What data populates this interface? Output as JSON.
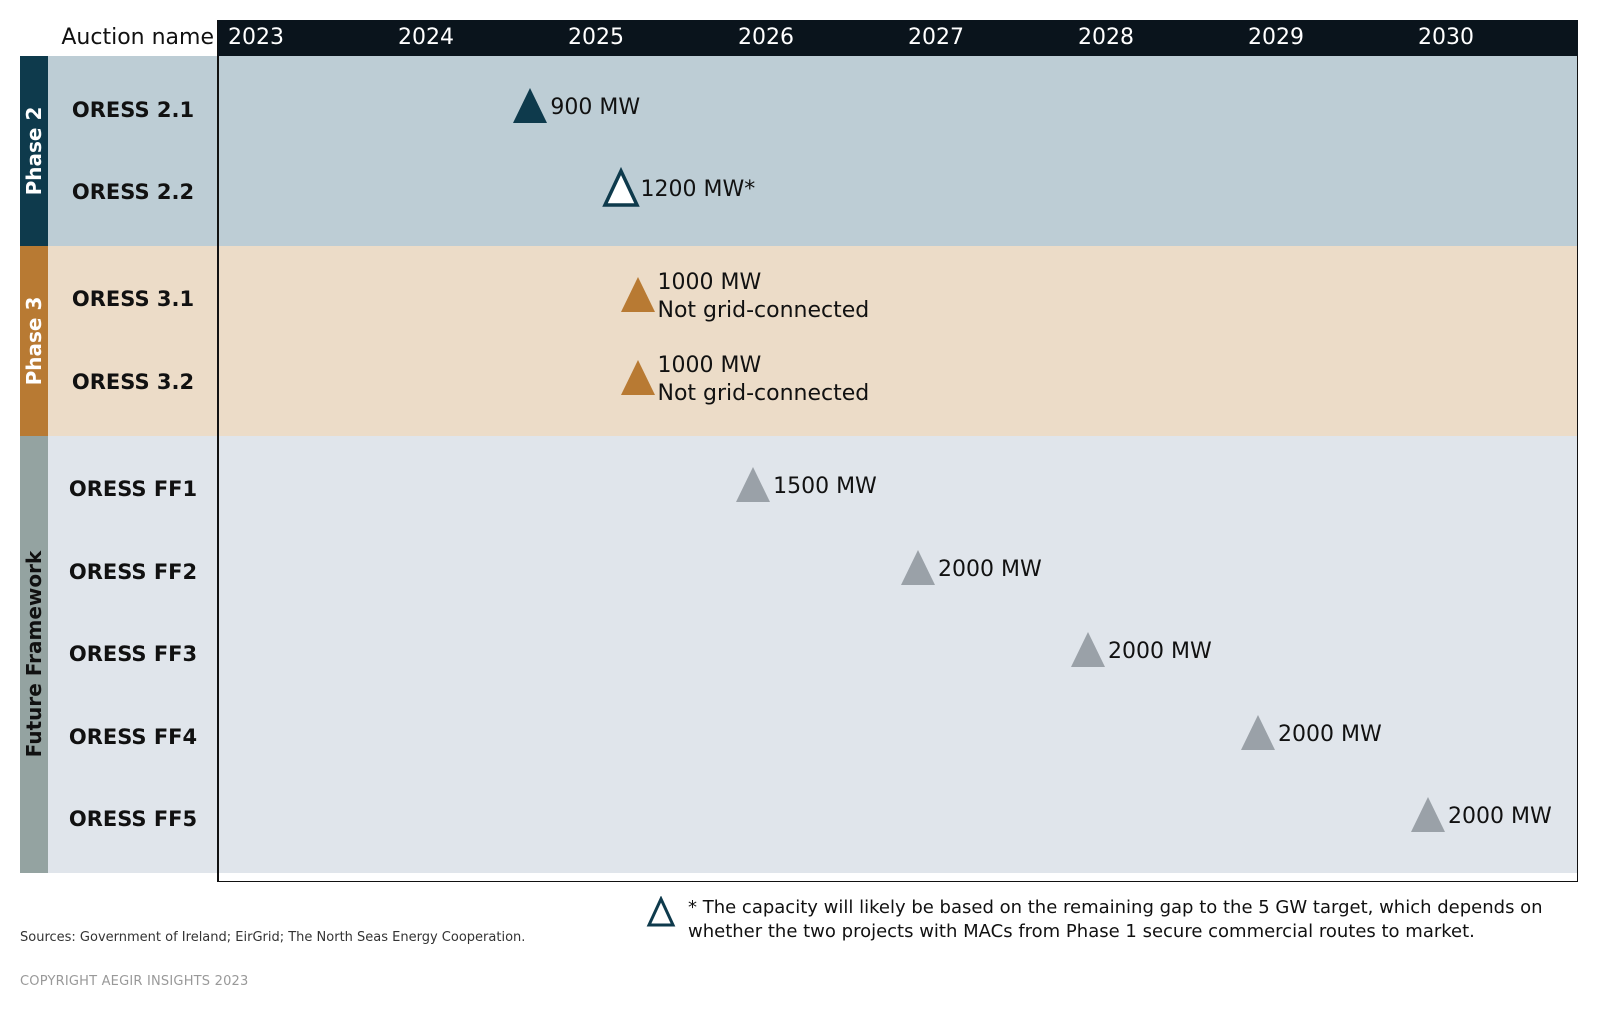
{
  "chart_data": {
    "type": "timeline",
    "header_label": "Auction name",
    "years": [
      "2023",
      "2024",
      "2025",
      "2026",
      "2027",
      "2028",
      "2029",
      "2030"
    ],
    "phases": [
      {
        "label": "Phase 2",
        "color": "#0e3a4c",
        "band_color": "#bdcdd5",
        "rows": 2
      },
      {
        "label": "Phase 3",
        "color": "#b87a33",
        "band_color": "#ecdcc8",
        "rows": 2
      },
      {
        "label": "Future Framework",
        "color": "#94a3a1",
        "band_color": "#e0e5eb",
        "rows": 5
      }
    ],
    "auctions": [
      {
        "name": "ORESS 2.1",
        "year": 2024.72,
        "capacity": "900 MW",
        "note": "",
        "marker": "filled",
        "color": "#0e3a4c"
      },
      {
        "name": "ORESS 2.2",
        "year": 2025.25,
        "capacity": "1200 MW*",
        "note": "",
        "marker": "outline",
        "color": "#0e3a4c"
      },
      {
        "name": "ORESS 3.1",
        "year": 2025.35,
        "capacity": "1000 MW",
        "note": "Not grid-connected",
        "marker": "filled",
        "color": "#b87a33"
      },
      {
        "name": "ORESS 3.2",
        "year": 2025.35,
        "capacity": "1000 MW",
        "note": "Not grid-connected",
        "marker": "filled",
        "color": "#b87a33"
      },
      {
        "name": "ORESS FF1",
        "year": 2026.03,
        "capacity": "1500 MW",
        "note": "",
        "marker": "filled",
        "color": "#9aa1a8"
      },
      {
        "name": "ORESS FF2",
        "year": 2027.0,
        "capacity": "2000 MW",
        "note": "",
        "marker": "filled",
        "color": "#9aa1a8"
      },
      {
        "name": "ORESS FF3",
        "year": 2028.0,
        "capacity": "2000 MW",
        "note": "",
        "marker": "filled",
        "color": "#9aa1a8"
      },
      {
        "name": "ORESS FF4",
        "year": 2029.0,
        "capacity": "2000 MW",
        "note": "",
        "marker": "filled",
        "color": "#9aa1a8"
      },
      {
        "name": "ORESS FF5",
        "year": 2030.0,
        "capacity": "2000 MW",
        "note": "",
        "marker": "filled",
        "color": "#9aa1a8"
      }
    ]
  },
  "footnote": "* The capacity will likely be based on the remaining gap to the 5 GW target, which depends on whether the two projects with MACs from Phase 1 secure commercial routes to market.",
  "sources": "Sources: Government of Ireland; EirGrid; The North Seas Energy Cooperation.",
  "copyright": "COPYRIGHT AEGIR INSIGHTS 2023"
}
